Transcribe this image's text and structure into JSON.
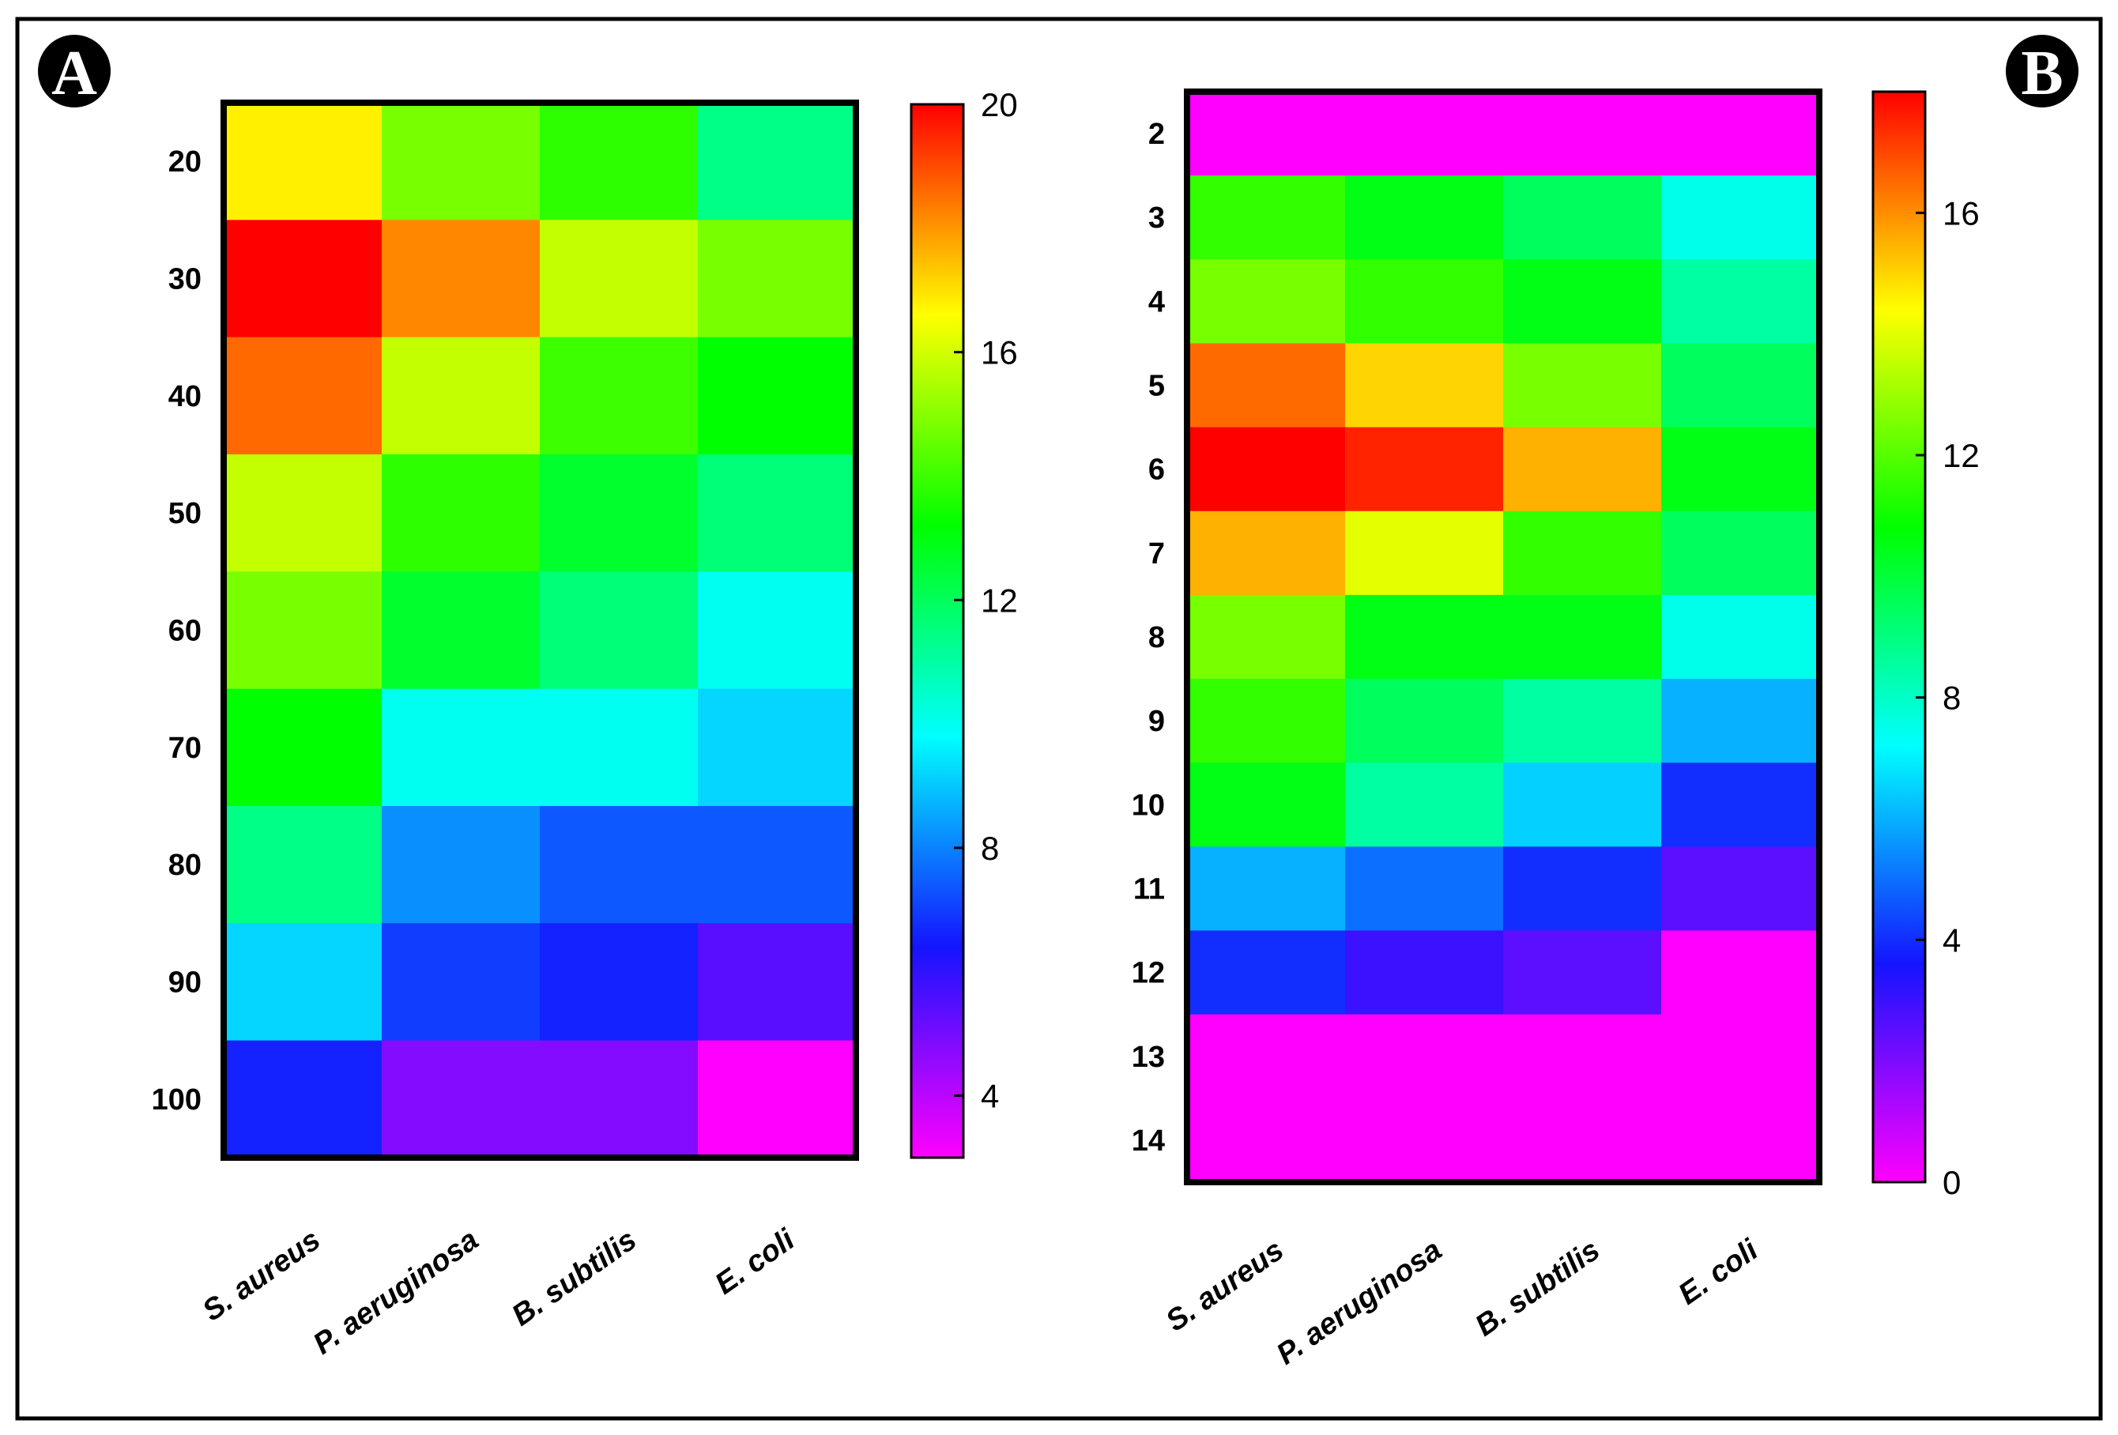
{
  "panels": {
    "a": {
      "label": "A"
    },
    "b": {
      "label": "B"
    }
  },
  "chart_data": [
    {
      "type": "heatmap",
      "panel": "A",
      "rows": [
        "20",
        "30",
        "40",
        "50",
        "60",
        "70",
        "80",
        "90",
        "100"
      ],
      "columns": [
        "S. aureus",
        "P. aeruginosa",
        "B. subtilis",
        "E. coli"
      ],
      "values": [
        [
          16.8,
          14.8,
          13.8,
          11.4
        ],
        [
          20.0,
          18.2,
          15.8,
          14.8
        ],
        [
          18.6,
          15.8,
          14.0,
          13.2
        ],
        [
          15.8,
          13.8,
          12.6,
          11.6
        ],
        [
          14.8,
          12.6,
          11.6,
          10.0
        ],
        [
          13.2,
          10.0,
          10.0,
          9.2
        ],
        [
          11.4,
          8.2,
          7.4,
          7.4
        ],
        [
          9.2,
          7.0,
          6.6,
          5.4
        ],
        [
          6.6,
          4.8,
          4.8,
          3.0
        ]
      ],
      "colorbar": {
        "min": 3,
        "max": 20,
        "ticks": [
          "4",
          "8",
          "12",
          "16",
          "20"
        ]
      }
    },
    {
      "type": "heatmap",
      "panel": "B",
      "rows": [
        "2",
        "3",
        "4",
        "5",
        "6",
        "7",
        "8",
        "9",
        "10",
        "11",
        "12",
        "13",
        "14"
      ],
      "columns": [
        "S. aureus",
        "P. aeruginosa",
        "B. subtilis",
        "E. coli"
      ],
      "values": [
        [
          0,
          0,
          0,
          0
        ],
        [
          11.5,
          10.5,
          9.5,
          7.5
        ],
        [
          12.5,
          11.5,
          10.5,
          8.5
        ],
        [
          16.5,
          15.0,
          12.5,
          9.5
        ],
        [
          18.0,
          17.5,
          15.5,
          10.5
        ],
        [
          15.5,
          14.0,
          11.5,
          9.5
        ],
        [
          12.5,
          10.5,
          10.5,
          7.5
        ],
        [
          11.5,
          9.5,
          8.5,
          6.0
        ],
        [
          10.5,
          8.5,
          6.5,
          4.0
        ],
        [
          6.0,
          5.0,
          4.0,
          2.5
        ],
        [
          4.0,
          3.0,
          2.5,
          0
        ],
        [
          0,
          0,
          0,
          0
        ],
        [
          0,
          0,
          0,
          0
        ]
      ],
      "colorbar": {
        "min": 0,
        "max": 18,
        "ticks": [
          "0",
          "4",
          "8",
          "12",
          "16"
        ]
      }
    }
  ]
}
